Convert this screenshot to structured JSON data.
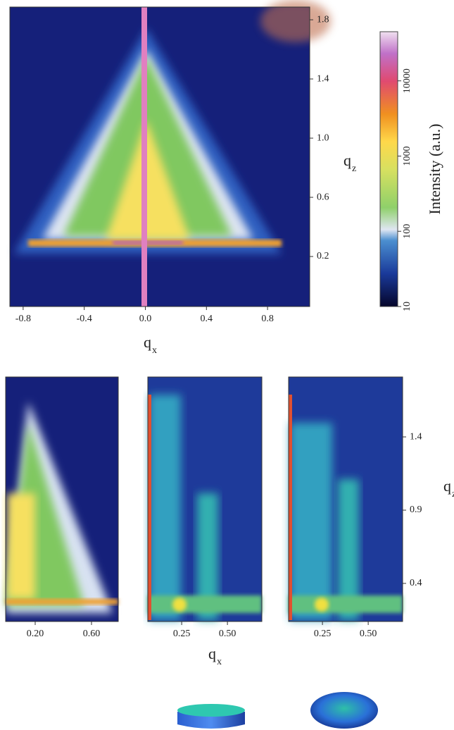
{
  "chart_data": [
    {
      "type": "heatmap",
      "xlabel": {
        "base": "q",
        "sub": "x"
      },
      "ylabel": {
        "base": "q",
        "sub": "z"
      },
      "xlim": [
        -0.887,
        1.076
      ],
      "xticks": [
        -0.8,
        -0.4,
        {
          "value": 0,
          "label": "0.0"
        },
        0.4,
        0.8
      ],
      "ylim": [
        -0.138,
        1.886
      ],
      "yticks": [
        0.2,
        0.6,
        {
          "value": 1,
          "label": "1.0"
        },
        1.4,
        1.8
      ]
    },
    {
      "type": "colorbar",
      "label": "Intensity (a.u.)",
      "log_scale": true,
      "ylim": [
        10,
        45000
      ],
      "yticks": [
        10,
        100,
        1000,
        10000
      ]
    },
    {
      "type": "heatmap",
      "xlim": [
        -0.01,
        0.79
      ],
      "xticks": [
        {
          "value": 0.2,
          "label": "0.20"
        },
        {
          "value": 0.6,
          "label": "0.60"
        }
      ],
      "ylim": [
        0.14,
        1.809
      ]
    },
    {
      "type": "heatmap",
      "xlim": [
        0.065,
        0.688
      ],
      "xticks": [
        0.25,
        {
          "value": 0.5,
          "label": "0.50"
        }
      ],
      "ylim": [
        0.14,
        1.809
      ]
    },
    {
      "type": "heatmap",
      "xlim": [
        0.065,
        0.688
      ],
      "xticks": [
        0.25,
        {
          "value": 0.5,
          "label": "0.50"
        }
      ],
      "ylim": [
        0.14,
        1.809
      ],
      "yticks": [
        0.4,
        0.9,
        1.4
      ],
      "xlabel": {
        "base": "q",
        "sub": "x"
      },
      "ylabel": {
        "base": "q",
        "sub": "z"
      }
    }
  ]
}
